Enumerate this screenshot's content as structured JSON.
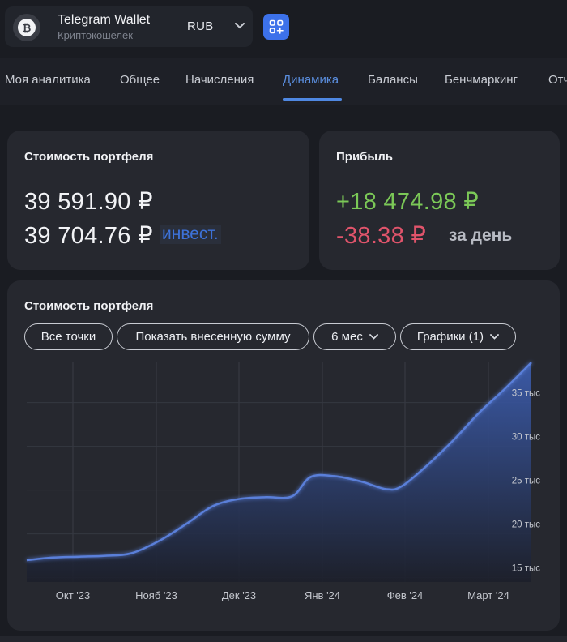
{
  "header": {
    "wallet_name": "Telegram Wallet",
    "wallet_type": "Криптокошелек",
    "currency": "RUB",
    "logo_icon": "bitcoin-icon",
    "apps_icon": "apps-add-icon",
    "accent_color": "#3c71ea"
  },
  "tabs": [
    {
      "label": "Моя аналитика"
    },
    {
      "label": "Общее"
    },
    {
      "label": "Начисления"
    },
    {
      "label": "Динамика",
      "active": true
    },
    {
      "label": "Балансы"
    },
    {
      "label": "Бенчмаркинг"
    },
    {
      "label": "Отч"
    }
  ],
  "portfolio_card": {
    "title": "Стоимость портфеля",
    "value": "39 591.90 ₽",
    "invested": "39 704.76 ₽",
    "invested_label": "инвест."
  },
  "profit_card": {
    "title": "Прибыль",
    "total": "+18 474.98 ₽",
    "daily": "-38.38 ₽",
    "daily_label": "за день",
    "positive_color": "#7bc857",
    "negative_color": "#e0546b"
  },
  "chart_card": {
    "title": "Стоимость портфеля",
    "filters": {
      "all_points": "Все точки",
      "show_invested": "Показать внесенную сумму",
      "period": "6 мес",
      "charts": "Графики (1)"
    }
  },
  "chart_data": {
    "type": "area",
    "title": "Стоимость портфеля",
    "x_tick_labels": [
      "Окт '23",
      "Нояб '23",
      "Дек '23",
      "Янв '24",
      "Фев '24",
      "Март '24"
    ],
    "y_tick_labels": [
      "15 тыс",
      "20 тыс",
      "25 тыс",
      "30 тыс",
      "35 тыс"
    ],
    "y_ticks": [
      15000,
      20000,
      25000,
      30000,
      35000
    ],
    "ylim": [
      14500,
      39600
    ],
    "x": [
      "2023-09-15",
      "2023-09-25",
      "2023-10-05",
      "2023-10-15",
      "2023-10-25",
      "2023-11-05",
      "2023-11-15",
      "2023-11-25",
      "2023-12-05",
      "2023-12-15",
      "2023-12-25",
      "2024-01-01",
      "2024-01-10",
      "2024-01-20",
      "2024-01-30",
      "2024-02-05",
      "2024-02-15",
      "2024-02-25",
      "2024-03-05",
      "2024-03-15",
      "2024-03-25"
    ],
    "values": [
      17000,
      17300,
      17400,
      17500,
      17800,
      19300,
      21200,
      23200,
      24000,
      24200,
      24300,
      26500,
      26600,
      26000,
      25100,
      25500,
      28000,
      30900,
      33800,
      36600,
      39591.9
    ],
    "line_color": "#5a7fd9",
    "grid": true
  }
}
